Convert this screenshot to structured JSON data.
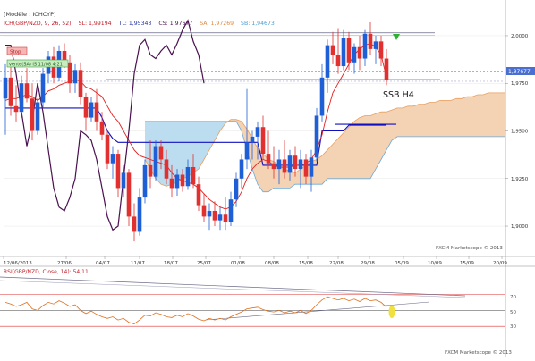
{
  "header": {
    "model_label": "[Modèle : ICHCYP]",
    "indicator_line": "ICH(GBP/NZD, 9, 26, 52)",
    "sl_label": "SL: 1,99194",
    "tl_label": "TL: 1,95343",
    "cs_label": "CS: 1,97677",
    "sa_label": "SA: 1,97269",
    "sb_label": "SB: 1,94673"
  },
  "tags": {
    "stop": "Stop",
    "vente": "vente(SA) IS 11/08 4:21"
  },
  "annotation": "SSB H4",
  "price_badge": "1,97677",
  "watermark": "FXCM Marketscope © 2013",
  "rsi": {
    "label": "RSI(GBP/NZD, Close, 14): 54,11",
    "watermark": "FXCM Marketscope © 2013",
    "levels": [
      "70",
      "50",
      "30"
    ]
  },
  "colors": {
    "background": "#ffffff",
    "candle_up": "#1f5fd6",
    "candle_down": "#e03030",
    "kijun": "#1010c0",
    "tenkan": "#e02020",
    "chikou": "#4a1050",
    "senkou_a": "#e8a060",
    "senkou_b": "#6aaad8",
    "cloud_bull": "#bcdcf0",
    "cloud_bear": "#f4d2b4",
    "rsi_line": "#e07020",
    "rsi_level": "#e03030",
    "rsi_signal": "#f0e040"
  },
  "chart_data": {
    "type": "candlestick",
    "instrument": "GBP/NZD",
    "ylim": [
      1.885,
      2.015
    ],
    "y_ticks": [
      "2,0000",
      "1,9750",
      "1,9500",
      "1,9250",
      "1,9000"
    ],
    "x_ticks": [
      "12/06/2013",
      "27/06",
      "04/07",
      "11/07",
      "18/07",
      "25/07",
      "01/08",
      "08/08",
      "15/08",
      "22/08",
      "29/08",
      "05/09",
      "10/09",
      "15/09",
      "20/09"
    ],
    "candles": [
      {
        "o": 1.967,
        "h": 1.985,
        "l": 1.948,
        "c": 1.978
      },
      {
        "o": 1.978,
        "h": 1.984,
        "l": 1.958,
        "c": 1.963
      },
      {
        "o": 1.963,
        "h": 1.974,
        "l": 1.955,
        "c": 1.96
      },
      {
        "o": 1.96,
        "h": 1.979,
        "l": 1.957,
        "c": 1.975
      },
      {
        "o": 1.975,
        "h": 1.983,
        "l": 1.965,
        "c": 1.967
      },
      {
        "o": 1.967,
        "h": 1.975,
        "l": 1.945,
        "c": 1.95
      },
      {
        "o": 1.95,
        "h": 1.967,
        "l": 1.948,
        "c": 1.965
      },
      {
        "o": 1.965,
        "h": 1.983,
        "l": 1.962,
        "c": 1.98
      },
      {
        "o": 1.98,
        "h": 1.992,
        "l": 1.975,
        "c": 1.989
      },
      {
        "o": 1.989,
        "h": 1.994,
        "l": 1.975,
        "c": 1.978
      },
      {
        "o": 1.978,
        "h": 1.995,
        "l": 1.976,
        "c": 1.992
      },
      {
        "o": 1.992,
        "h": 1.996,
        "l": 1.983,
        "c": 1.986
      },
      {
        "o": 1.986,
        "h": 1.99,
        "l": 1.97,
        "c": 1.975
      },
      {
        "o": 1.975,
        "h": 1.985,
        "l": 1.97,
        "c": 1.982
      },
      {
        "o": 1.982,
        "h": 1.986,
        "l": 1.964,
        "c": 1.968
      },
      {
        "o": 1.968,
        "h": 1.97,
        "l": 1.95,
        "c": 1.957
      },
      {
        "o": 1.957,
        "h": 1.968,
        "l": 1.955,
        "c": 1.965
      },
      {
        "o": 1.965,
        "h": 1.972,
        "l": 1.95,
        "c": 1.955
      },
      {
        "o": 1.955,
        "h": 1.96,
        "l": 1.945,
        "c": 1.948
      },
      {
        "o": 1.948,
        "h": 1.95,
        "l": 1.93,
        "c": 1.933
      },
      {
        "o": 1.933,
        "h": 1.942,
        "l": 1.925,
        "c": 1.938
      },
      {
        "o": 1.938,
        "h": 1.94,
        "l": 1.915,
        "c": 1.92
      },
      {
        "o": 1.92,
        "h": 1.932,
        "l": 1.915,
        "c": 1.928
      },
      {
        "o": 1.928,
        "h": 1.93,
        "l": 1.9,
        "c": 1.905
      },
      {
        "o": 1.905,
        "h": 1.912,
        "l": 1.892,
        "c": 1.897
      },
      {
        "o": 1.897,
        "h": 1.92,
        "l": 1.895,
        "c": 1.915
      },
      {
        "o": 1.915,
        "h": 1.935,
        "l": 1.912,
        "c": 1.932
      },
      {
        "o": 1.932,
        "h": 1.945,
        "l": 1.92,
        "c": 1.926
      },
      {
        "o": 1.926,
        "h": 1.945,
        "l": 1.924,
        "c": 1.942
      },
      {
        "o": 1.942,
        "h": 1.945,
        "l": 1.93,
        "c": 1.935
      },
      {
        "o": 1.935,
        "h": 1.94,
        "l": 1.922,
        "c": 1.925
      },
      {
        "o": 1.925,
        "h": 1.932,
        "l": 1.915,
        "c": 1.92
      },
      {
        "o": 1.92,
        "h": 1.93,
        "l": 1.916,
        "c": 1.927
      },
      {
        "o": 1.927,
        "h": 1.93,
        "l": 1.918,
        "c": 1.921
      },
      {
        "o": 1.921,
        "h": 1.935,
        "l": 1.919,
        "c": 1.931
      },
      {
        "o": 1.931,
        "h": 1.938,
        "l": 1.92,
        "c": 1.922
      },
      {
        "o": 1.922,
        "h": 1.926,
        "l": 1.908,
        "c": 1.911
      },
      {
        "o": 1.911,
        "h": 1.917,
        "l": 1.902,
        "c": 1.905
      },
      {
        "o": 1.905,
        "h": 1.912,
        "l": 1.898,
        "c": 1.908
      },
      {
        "o": 1.908,
        "h": 1.913,
        "l": 1.9,
        "c": 1.903
      },
      {
        "o": 1.903,
        "h": 1.91,
        "l": 1.898,
        "c": 1.906
      },
      {
        "o": 1.906,
        "h": 1.915,
        "l": 1.898,
        "c": 1.902
      },
      {
        "o": 1.902,
        "h": 1.918,
        "l": 1.9,
        "c": 1.914
      },
      {
        "o": 1.914,
        "h": 1.928,
        "l": 1.91,
        "c": 1.925
      },
      {
        "o": 1.925,
        "h": 1.938,
        "l": 1.92,
        "c": 1.935
      },
      {
        "o": 1.935,
        "h": 1.972,
        "l": 1.93,
        "c": 1.944
      },
      {
        "o": 1.944,
        "h": 1.95,
        "l": 1.935,
        "c": 1.947
      },
      {
        "o": 1.947,
        "h": 1.955,
        "l": 1.935,
        "c": 1.952
      },
      {
        "o": 1.952,
        "h": 1.958,
        "l": 1.935,
        "c": 1.938
      },
      {
        "o": 1.938,
        "h": 1.95,
        "l": 1.93,
        "c": 1.933
      },
      {
        "o": 1.933,
        "h": 1.942,
        "l": 1.925,
        "c": 1.93
      },
      {
        "o": 1.93,
        "h": 1.94,
        "l": 1.922,
        "c": 1.935
      },
      {
        "o": 1.935,
        "h": 1.945,
        "l": 1.925,
        "c": 1.928
      },
      {
        "o": 1.928,
        "h": 1.94,
        "l": 1.924,
        "c": 1.937
      },
      {
        "o": 1.937,
        "h": 1.942,
        "l": 1.926,
        "c": 1.93
      },
      {
        "o": 1.93,
        "h": 1.94,
        "l": 1.92,
        "c": 1.935
      },
      {
        "o": 1.935,
        "h": 1.938,
        "l": 1.922,
        "c": 1.926
      },
      {
        "o": 1.926,
        "h": 1.94,
        "l": 1.918,
        "c": 1.936
      },
      {
        "o": 1.936,
        "h": 1.962,
        "l": 1.934,
        "c": 1.958
      },
      {
        "o": 1.958,
        "h": 1.985,
        "l": 1.955,
        "c": 1.978
      },
      {
        "o": 1.978,
        "h": 1.998,
        "l": 1.97,
        "c": 1.995
      },
      {
        "o": 1.995,
        "h": 2.002,
        "l": 1.985,
        "c": 1.99
      },
      {
        "o": 1.99,
        "h": 2.004,
        "l": 1.98,
        "c": 1.984
      },
      {
        "o": 1.984,
        "h": 2.003,
        "l": 1.982,
        "c": 1.999
      },
      {
        "o": 1.999,
        "h": 2.002,
        "l": 1.982,
        "c": 1.986
      },
      {
        "o": 1.986,
        "h": 1.996,
        "l": 1.98,
        "c": 1.994
      },
      {
        "o": 1.994,
        "h": 2.0,
        "l": 1.982,
        "c": 1.988
      },
      {
        "o": 1.988,
        "h": 2.003,
        "l": 1.984,
        "c": 2.001
      },
      {
        "o": 2.001,
        "h": 2.007,
        "l": 1.99,
        "c": 1.993
      },
      {
        "o": 1.993,
        "h": 2.0,
        "l": 1.985,
        "c": 1.997
      },
      {
        "o": 1.997,
        "h": 2.0,
        "l": 1.984,
        "c": 1.988
      },
      {
        "o": 1.988,
        "h": 1.993,
        "l": 1.974,
        "c": 1.977
      }
    ],
    "tenkan": [
      1.966,
      1.967,
      1.967,
      1.968,
      1.969,
      1.968,
      1.966,
      1.968,
      1.971,
      1.972,
      1.974,
      1.975,
      1.976,
      1.977,
      1.976,
      1.973,
      1.972,
      1.97,
      1.968,
      1.963,
      1.958,
      1.955,
      1.95,
      1.945,
      1.94,
      1.937,
      1.936,
      1.935,
      1.934,
      1.933,
      1.932,
      1.928,
      1.925,
      1.924,
      1.923,
      1.922,
      1.92,
      1.917,
      1.914,
      1.912,
      1.91,
      1.909,
      1.91,
      1.913,
      1.918,
      1.925,
      1.93,
      1.933,
      1.935,
      1.934,
      1.932,
      1.931,
      1.931,
      1.931,
      1.932,
      1.932,
      1.933,
      1.935,
      1.94,
      1.948,
      1.96,
      1.97,
      1.975,
      1.98,
      1.985,
      1.99,
      1.993,
      1.995,
      1.996,
      1.994,
      1.99,
      1.978
    ],
    "kijun": [
      1.962,
      1.962,
      1.962,
      1.962,
      1.962,
      1.962,
      1.962,
      1.962,
      1.962,
      1.962,
      1.962,
      1.962,
      1.962,
      1.962,
      1.962,
      1.962,
      1.962,
      1.962,
      1.957,
      1.95,
      1.946,
      1.944,
      1.944,
      1.944,
      1.944,
      1.944,
      1.944,
      1.944,
      1.944,
      1.944,
      1.944,
      1.944,
      1.944,
      1.944,
      1.944,
      1.944,
      1.944,
      1.944,
      1.944,
      1.944,
      1.944,
      1.944,
      1.944,
      1.944,
      1.944,
      1.944,
      1.944,
      1.944,
      1.932,
      1.932,
      1.932,
      1.932,
      1.932,
      1.932,
      1.932,
      1.932,
      1.932,
      1.932,
      1.932,
      1.95,
      1.95,
      1.95,
      1.95,
      1.95,
      1.953,
      1.953,
      1.953,
      1.953,
      1.953,
      1.953,
      1.953,
      1.953
    ],
    "ssb_h4_level": 1.9535,
    "reference_levels": [
      2.0015,
      1.981,
      1.977
    ],
    "chikou": [
      1.995,
      1.995,
      1.98,
      1.96,
      1.942,
      1.955,
      1.975,
      1.96,
      1.94,
      1.92,
      1.91,
      1.908,
      1.915,
      1.925,
      1.95,
      1.948,
      1.945,
      1.935,
      1.92,
      1.905,
      1.898,
      1.9,
      1.925,
      1.95,
      1.98,
      1.995,
      1.998,
      1.99,
      1.988,
      1.992,
      1.995,
      1.99,
      1.996,
      2.003,
      2.008,
      1.997,
      1.99,
      1.975
    ],
    "senkou_a": [
      1.935,
      1.93,
      1.925,
      1.922,
      1.921,
      1.922,
      1.923,
      1.925,
      1.926,
      1.928,
      1.93,
      1.935,
      1.94,
      1.945,
      1.95,
      1.954,
      1.956,
      1.956,
      1.955,
      1.951,
      1.946,
      1.941,
      1.938,
      1.935,
      1.934,
      1.932,
      1.93,
      1.929,
      1.928,
      1.93,
      1.932,
      1.934,
      1.935,
      1.937,
      1.94,
      1.943,
      1.946,
      1.949,
      1.952,
      1.955,
      1.957,
      1.958,
      1.958,
      1.959,
      1.96,
      1.96,
      1.961,
      1.962,
      1.962,
      1.963,
      1.963,
      1.964,
      1.964,
      1.965,
      1.965,
      1.966,
      1.966,
      1.966,
      1.967,
      1.967,
      1.968,
      1.968,
      1.969,
      1.969,
      1.97,
      1.97,
      1.97,
      1.97
    ],
    "senkou_b": [
      1.955,
      1.955,
      1.955,
      1.955,
      1.955,
      1.955,
      1.955,
      1.955,
      1.955,
      1.955,
      1.955,
      1.955,
      1.955,
      1.955,
      1.955,
      1.955,
      1.955,
      1.955,
      1.95,
      1.94,
      1.93,
      1.922,
      1.918,
      1.918,
      1.92,
      1.92,
      1.92,
      1.92,
      1.922,
      1.922,
      1.922,
      1.922,
      1.922,
      1.922,
      1.925,
      1.925,
      1.925,
      1.925,
      1.925,
      1.925,
      1.925,
      1.925,
      1.925,
      1.93,
      1.935,
      1.94,
      1.945,
      1.947,
      1.947,
      1.947,
      1.947,
      1.947,
      1.947,
      1.947,
      1.947,
      1.947,
      1.947,
      1.947,
      1.947,
      1.947,
      1.947,
      1.947,
      1.947,
      1.947,
      1.947,
      1.947,
      1.947,
      1.947
    ],
    "rsi": {
      "ylim": [
        0,
        100
      ],
      "levels": [
        70,
        50,
        30
      ],
      "values": [
        60,
        58,
        55,
        57,
        60,
        52,
        50,
        56,
        60,
        58,
        62,
        59,
        55,
        57,
        50,
        46,
        49,
        45,
        42,
        40,
        42,
        38,
        40,
        35,
        33,
        38,
        44,
        43,
        47,
        45,
        42,
        41,
        44,
        42,
        46,
        43,
        39,
        37,
        40,
        38,
        40,
        38,
        42,
        45,
        48,
        52,
        53,
        54,
        51,
        49,
        48,
        50,
        47,
        49,
        47,
        50,
        46,
        50,
        57,
        63,
        67,
        65,
        63,
        65,
        62,
        64,
        61,
        65,
        62,
        63,
        60,
        54
      ]
    }
  }
}
